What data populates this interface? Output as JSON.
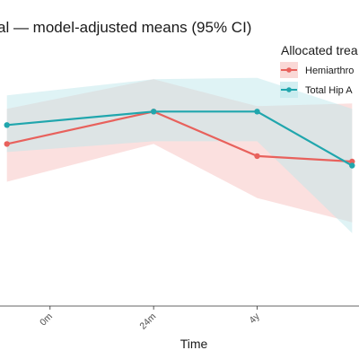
{
  "chart_data": {
    "type": "line",
    "title": "al — model-adjusted means (95% CI)",
    "xlabel": "Time",
    "ylabel": "",
    "x_ticks": [
      "0m",
      "24m",
      "4y"
    ],
    "x_tick_values": [
      0,
      24,
      48
    ],
    "x_range": [
      0,
      70
    ],
    "y_range": [
      0,
      10
    ],
    "grid": false,
    "legend": {
      "title": "Allocated trea",
      "placement": "top-right",
      "entries": [
        "Hemiarthro",
        "Total Hip A"
      ]
    },
    "series": [
      {
        "name": "Hemiarthro",
        "color": "#e8615c",
        "ribbon_color": "#f8c7c5",
        "x": [
          -10,
          24,
          48,
          70
        ],
        "y": [
          6.0,
          7.2,
          5.55,
          5.35
        ],
        "lower": [
          4.6,
          6.0,
          4.0,
          3.1
        ],
        "upper": [
          7.3,
          8.4,
          7.4,
          7.5
        ]
      },
      {
        "name": "Total Hip A",
        "color": "#20a6ad",
        "ribbon_color": "#bfe8ec",
        "x": [
          -10,
          24,
          48,
          70
        ],
        "y": [
          6.7,
          7.2,
          7.2,
          5.2
        ],
        "lower": [
          5.7,
          6.1,
          6.1,
          2.7
        ],
        "upper": [
          7.8,
          8.4,
          8.45,
          7.3
        ]
      }
    ]
  }
}
